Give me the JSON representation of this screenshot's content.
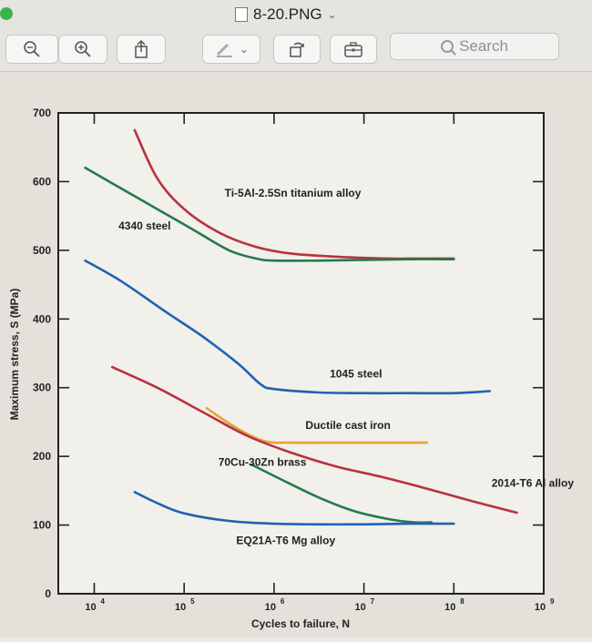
{
  "window": {
    "title": "8-20.PNG",
    "search_placeholder": "Search",
    "icons": [
      "zoom-out-icon",
      "zoom-in-icon",
      "share-icon",
      "markup-pen-icon",
      "markup-chevron-icon",
      "rotate-icon",
      "toolbox-icon",
      "search-icon"
    ]
  },
  "colors": {
    "red": "#b8323f",
    "green": "#237a4e",
    "blue": "#1f62b4",
    "orange": "#e4a43a",
    "axis": "#222222"
  },
  "chart_data": {
    "type": "line",
    "title": "",
    "xlabel": "Cycles to failure, N",
    "ylabel": "Maximum stress, S (MPa)",
    "xscale": "log",
    "xlim_exponent": [
      3.6,
      9.0
    ],
    "ylim": [
      0,
      700
    ],
    "yticks": [
      0,
      100,
      200,
      300,
      400,
      500,
      600,
      700
    ],
    "ytick_labels": [
      "0",
      "100",
      "200",
      "300",
      "400",
      "500",
      "600",
      "700"
    ],
    "xtick_exponents": [
      4,
      5,
      6,
      7,
      8,
      9
    ],
    "xtick_labels": [
      "10",
      "10",
      "10",
      "10",
      "10",
      "10"
    ],
    "xtick_superscripts": [
      "4",
      "5",
      "6",
      "7",
      "8",
      "9"
    ],
    "grid": false,
    "series": [
      {
        "name": "Ti-5Al-2.5Sn titanium alloy",
        "color": "red",
        "log10N": [
          4.45,
          4.7,
          5.0,
          5.4,
          5.8,
          6.2,
          6.8,
          7.3,
          7.6,
          8.0
        ],
        "S": [
          675,
          605,
          560,
          525,
          505,
          495,
          490,
          488,
          488,
          488
        ]
      },
      {
        "name": "4340 steel",
        "color": "green",
        "log10N": [
          3.9,
          4.3,
          4.7,
          5.1,
          5.5,
          5.8,
          6.0,
          6.5,
          7.0,
          7.5,
          8.0
        ],
        "S": [
          620,
          590,
          560,
          530,
          500,
          488,
          485,
          485,
          486,
          487,
          487
        ]
      },
      {
        "name": "1045 steel",
        "color": "blue",
        "log10N": [
          3.9,
          4.3,
          4.8,
          5.2,
          5.6,
          5.85,
          6.0,
          6.5,
          7.0,
          7.5,
          8.0,
          8.4
        ],
        "S": [
          485,
          455,
          410,
          375,
          335,
          305,
          298,
          293,
          292,
          292,
          292,
          295
        ]
      },
      {
        "name": "Ductile cast iron",
        "color": "orange",
        "log10N": [
          5.25,
          5.6,
          5.9,
          6.2,
          6.6,
          7.0,
          7.4,
          7.7
        ],
        "S": [
          270,
          240,
          222,
          220,
          220,
          220,
          220,
          220
        ]
      },
      {
        "name": "70Cu-30Zn brass",
        "color": "green",
        "log10N": [
          5.75,
          6.1,
          6.5,
          6.9,
          7.3,
          7.55,
          7.75
        ],
        "S": [
          188,
          165,
          140,
          120,
          108,
          104,
          104
        ]
      },
      {
        "name": "2014-T6 Al alloy",
        "color": "red",
        "log10N": [
          4.2,
          4.7,
          5.2,
          5.7,
          6.2,
          6.7,
          7.2,
          7.7,
          8.2,
          8.7
        ],
        "S": [
          330,
          300,
          265,
          230,
          205,
          185,
          170,
          153,
          135,
          118
        ]
      },
      {
        "name": "EQ21A-T6 Mg alloy",
        "color": "blue",
        "log10N": [
          4.45,
          4.7,
          5.0,
          5.5,
          6.0,
          6.5,
          7.0,
          7.5,
          7.8,
          8.0
        ],
        "S": [
          148,
          132,
          117,
          106,
          102,
          101,
          101,
          102,
          102,
          102
        ]
      }
    ],
    "annotations": [
      {
        "text": "Ti-5Al-2.5Sn titanium alloy",
        "log10N": 5.45,
        "S": 578
      },
      {
        "text": "4340 steel",
        "log10N": 4.27,
        "S": 530
      },
      {
        "text": "1045 steel",
        "log10N": 6.62,
        "S": 315
      },
      {
        "text": "Ductile cast iron",
        "log10N": 6.35,
        "S": 240
      },
      {
        "text": "70Cu-30Zn brass",
        "log10N": 5.38,
        "S": 186
      },
      {
        "text": "2014-T6 Al alloy",
        "log10N": 8.42,
        "S": 156
      },
      {
        "text": "EQ21A-T6 Mg alloy",
        "log10N": 5.58,
        "S": 72
      }
    ]
  }
}
